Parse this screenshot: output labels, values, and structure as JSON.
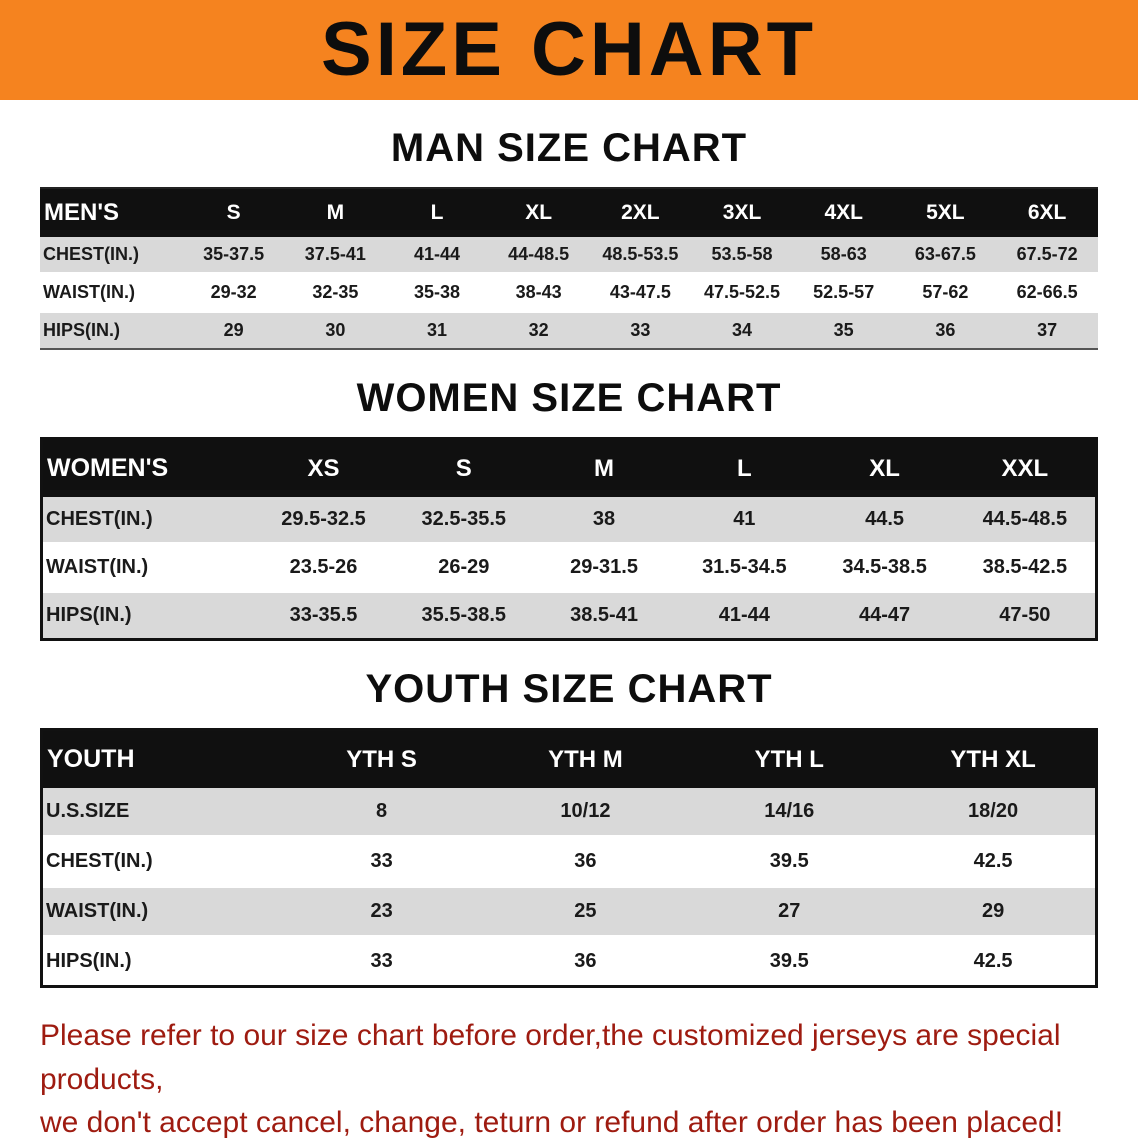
{
  "colors": {
    "banner_bg": "#F5831F",
    "note_color": "#9E1B10"
  },
  "banner": {
    "title": "SIZE CHART"
  },
  "sections": [
    {
      "heading": "MAN SIZE CHART",
      "table": {
        "header": [
          "MEN'S",
          "S",
          "M",
          "L",
          "XL",
          "2XL",
          "3XL",
          "4XL",
          "5XL",
          "6XL"
        ],
        "rows": [
          [
            "CHEST(IN.)",
            "35-37.5",
            "37.5-41",
            "41-44",
            "44-48.5",
            "48.5-53.5",
            "53.5-58",
            "58-63",
            "63-67.5",
            "67.5-72"
          ],
          [
            "WAIST(IN.)",
            "29-32",
            "32-35",
            "35-38",
            "38-43",
            "43-47.5",
            "47.5-52.5",
            "52.5-57",
            "57-62",
            "62-66.5"
          ],
          [
            "HIPS(IN.)",
            "29",
            "30",
            "31",
            "32",
            "33",
            "34",
            "35",
            "36",
            "37"
          ]
        ]
      }
    },
    {
      "heading": "WOMEN SIZE CHART",
      "table": {
        "header": [
          "WOMEN'S",
          "XS",
          "S",
          "M",
          "L",
          "XL",
          "XXL"
        ],
        "rows": [
          [
            "CHEST(IN.)",
            "29.5-32.5",
            "32.5-35.5",
            "38",
            "41",
            "44.5",
            "44.5-48.5"
          ],
          [
            "WAIST(IN.)",
            "23.5-26",
            "26-29",
            "29-31.5",
            "31.5-34.5",
            "34.5-38.5",
            "38.5-42.5"
          ],
          [
            "HIPS(IN.)",
            "33-35.5",
            "35.5-38.5",
            "38.5-41",
            "41-44",
            "44-47",
            "47-50"
          ]
        ]
      }
    },
    {
      "heading": "YOUTH SIZE CHART",
      "table": {
        "header": [
          "YOUTH",
          "YTH S",
          "YTH M",
          "YTH L",
          "YTH XL"
        ],
        "rows": [
          [
            "U.S.SIZE",
            "8",
            "10/12",
            "14/16",
            "18/20"
          ],
          [
            "CHEST(IN.)",
            "33",
            "36",
            "39.5",
            "42.5"
          ],
          [
            "WAIST(IN.)",
            "23",
            "25",
            "27",
            "29"
          ],
          [
            "HIPS(IN.)",
            "33",
            "36",
            "39.5",
            "42.5"
          ]
        ]
      }
    }
  ],
  "footer": {
    "line1": "Please refer to our size chart before order,the customized jerseys are special products,",
    "line2": "we don't accept cancel, change, teturn or refund after order has been placed!"
  }
}
